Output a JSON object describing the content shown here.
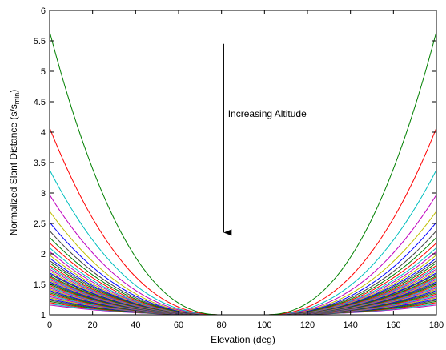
{
  "chart_data": {
    "type": "line",
    "title": "",
    "xlabel": "Elevation (deg)",
    "ylabel_main": "Normalized Slant Distance (s/s",
    "ylabel_sub": "min",
    "ylabel_close": ")",
    "xlim": [
      0,
      180
    ],
    "ylim": [
      1,
      6
    ],
    "xticks": [
      0,
      20,
      40,
      60,
      80,
      100,
      120,
      140,
      160,
      180
    ],
    "yticks": [
      1,
      1.5,
      2,
      2.5,
      3,
      3.5,
      4,
      4.5,
      5,
      5.5,
      6
    ],
    "ytick_labels": [
      "1",
      "1.5",
      "2",
      "2.5",
      "3",
      "3.5",
      "4",
      "4.5",
      "5",
      "5.5",
      "6"
    ],
    "grid": false,
    "flat_region": [
      80,
      100
    ],
    "annotation": {
      "text": "Increasing Altitude",
      "arrow": {
        "x": 81,
        "y_from": 5.45,
        "y_to": 2.35
      },
      "text_pos": {
        "x": 83,
        "y": 4.3
      }
    },
    "colors": [
      "#008000",
      "#ff0000",
      "#00bfbf",
      "#bf00bf",
      "#bfbf00",
      "#0000ff",
      "#404040"
    ],
    "series": [
      {
        "y_max": 5.65
      },
      {
        "y_max": 4.07
      },
      {
        "y_max": 3.38
      },
      {
        "y_max": 2.97
      },
      {
        "y_max": 2.7
      },
      {
        "y_max": 2.52
      },
      {
        "y_max": 2.38
      },
      {
        "y_max": 2.27
      },
      {
        "y_max": 2.18
      },
      {
        "y_max": 2.1
      },
      {
        "y_max": 2.04
      },
      {
        "y_max": 1.98
      },
      {
        "y_max": 1.93
      },
      {
        "y_max": 1.89
      },
      {
        "y_max": 1.85
      },
      {
        "y_max": 1.81
      },
      {
        "y_max": 1.78
      },
      {
        "y_max": 1.75
      },
      {
        "y_max": 1.72
      },
      {
        "y_max": 1.69
      },
      {
        "y_max": 1.67
      },
      {
        "y_max": 1.64
      },
      {
        "y_max": 1.62
      },
      {
        "y_max": 1.6
      },
      {
        "y_max": 1.58
      },
      {
        "y_max": 1.56
      },
      {
        "y_max": 1.54
      },
      {
        "y_max": 1.52
      },
      {
        "y_max": 1.5
      },
      {
        "y_max": 1.48
      },
      {
        "y_max": 1.46
      },
      {
        "y_max": 1.44
      },
      {
        "y_max": 1.42
      },
      {
        "y_max": 1.4
      },
      {
        "y_max": 1.38
      },
      {
        "y_max": 1.36
      },
      {
        "y_max": 1.34
      },
      {
        "y_max": 1.32
      },
      {
        "y_max": 1.3
      },
      {
        "y_max": 1.28
      },
      {
        "y_max": 1.26
      },
      {
        "y_max": 1.24
      },
      {
        "y_max": 1.22
      },
      {
        "y_max": 1.2
      },
      {
        "y_max": 1.18
      },
      {
        "y_max": 1.16
      }
    ]
  }
}
